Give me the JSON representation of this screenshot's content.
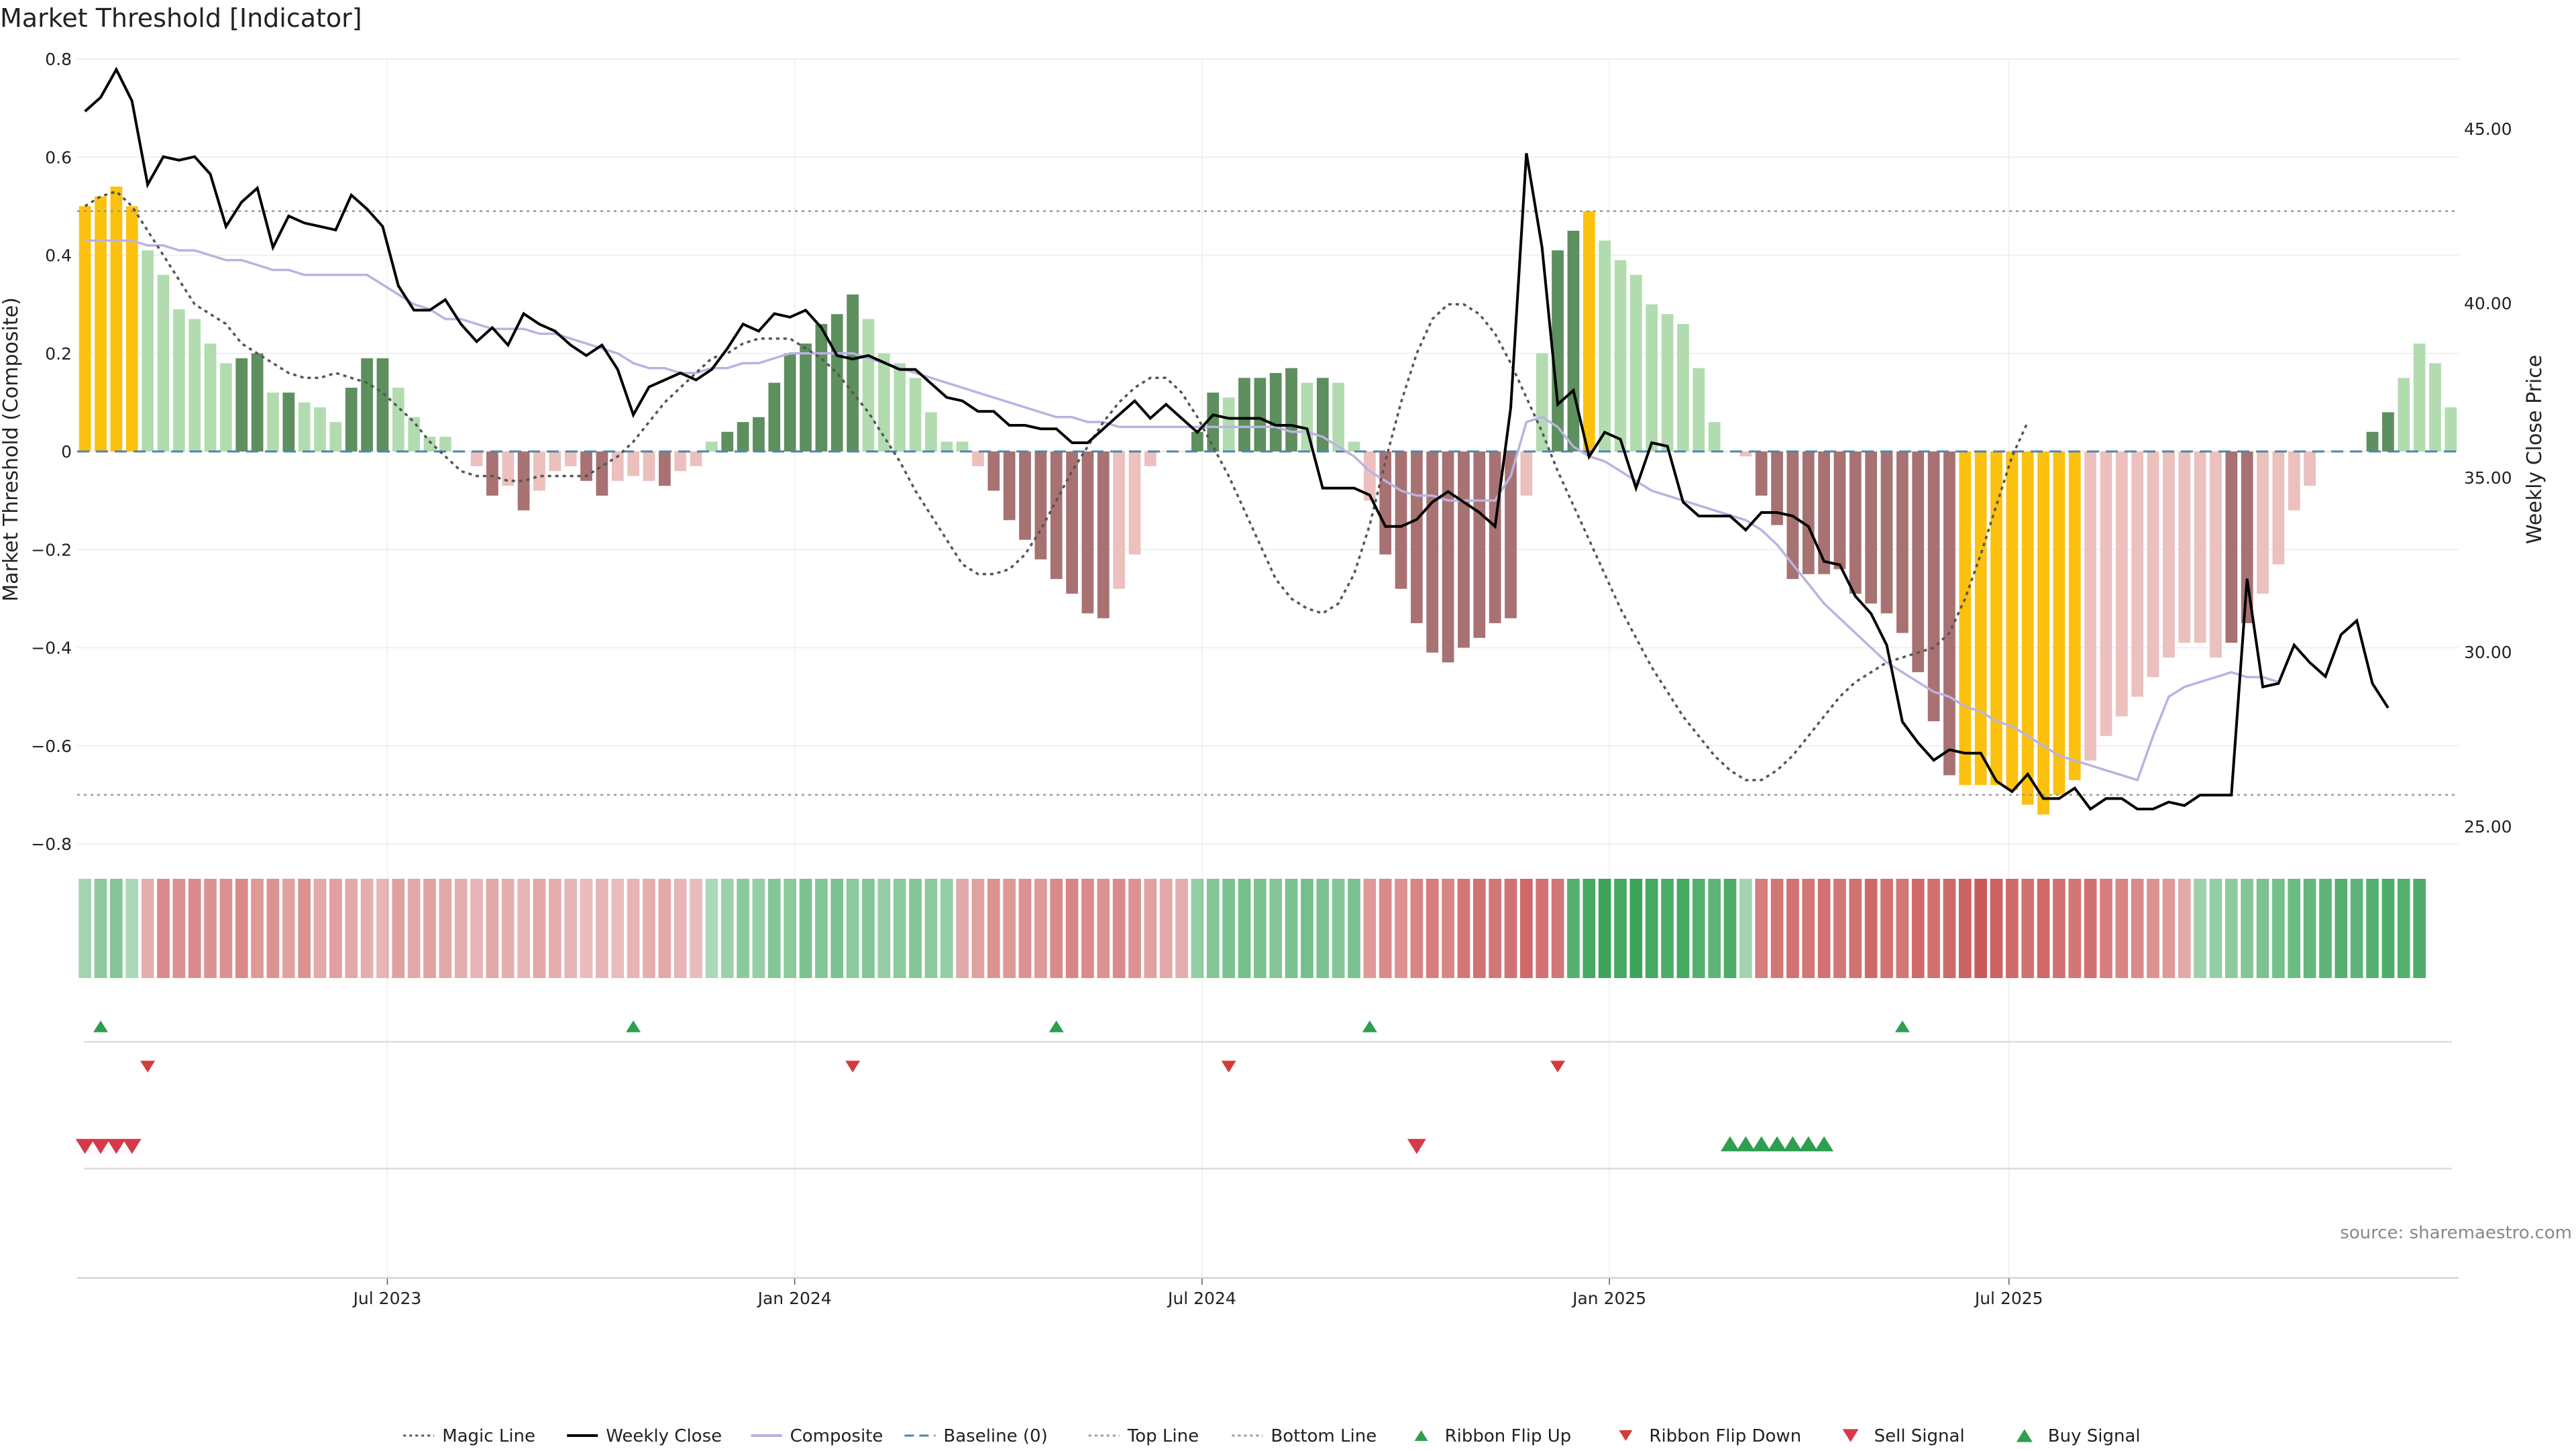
{
  "chart_data": {
    "type": "bar",
    "title": "Market Threshold [Indicator]",
    "ylabel": "Market Threshold (Composite)",
    "ylabel_right": "Weekly Close Price",
    "source": "source: sharemaestro.com",
    "ylim": [
      -0.8,
      0.8
    ],
    "ylim_right": [
      24.5,
      47
    ],
    "y_ticks": [
      "0.8",
      "0.6",
      "0.4",
      "0.2",
      "0",
      "−0.2",
      "−0.4",
      "−0.6",
      "−0.8"
    ],
    "y_tick_values": [
      0.8,
      0.6,
      0.4,
      0.2,
      0,
      -0.2,
      -0.4,
      -0.6,
      -0.8
    ],
    "y_right_ticks": [
      "45.00",
      "40.00",
      "35.00",
      "30.00",
      "25.00"
    ],
    "y_right_tick_values": [
      45,
      40,
      35,
      30,
      25
    ],
    "x_ticks": [
      "Jul 2023",
      "Jan 2024",
      "Jul 2024",
      "Jan 2025",
      "Jul 2025"
    ],
    "x_tick_weeks": [
      19.3,
      45.3,
      71.3,
      97.3,
      122.8
    ],
    "top_line": 0.49,
    "bottom_line": -0.7,
    "grid": true,
    "legend_position": "bottom-center",
    "legend": [
      {
        "label": "Magic Line",
        "kind": "dotted",
        "color": "#555555"
      },
      {
        "label": "Weekly Close",
        "kind": "solid",
        "color": "#000000"
      },
      {
        "label": "Composite",
        "kind": "solid",
        "color": "#b9b3e0"
      },
      {
        "label": "Baseline (0)",
        "kind": "dashed",
        "color": "#4a86b0"
      },
      {
        "label": "Top Line",
        "kind": "dotted",
        "color": "#999999"
      },
      {
        "label": "Bottom Line",
        "kind": "dotted",
        "color": "#999999"
      },
      {
        "label": "Ribbon Flip Up",
        "kind": "tri-up",
        "color": "#2e9e4f"
      },
      {
        "label": "Ribbon Flip Down",
        "kind": "tri-down",
        "color": "#d63a3a"
      },
      {
        "label": "Sell Signal",
        "kind": "tri-down-lg",
        "color": "#d63a4a"
      },
      {
        "label": "Buy Signal",
        "kind": "tri-up-lg",
        "color": "#2e9e4f"
      }
    ],
    "colors": {
      "extreme": "#fcc10f",
      "pos_strong": "#5e8f5e",
      "pos_light": "#b2dcb0",
      "neg_strong": "#a87272",
      "neg_light": "#ecc0bd",
      "close": "#000000",
      "composite": "#b9b3e0",
      "magic": "#555555",
      "baseline": "#4a86b0"
    },
    "histogram": [
      0.5,
      0.52,
      0.54,
      0.5,
      0.41,
      0.36,
      0.29,
      0.27,
      0.22,
      0.18,
      0.19,
      0.2,
      0.12,
      0.12,
      0.1,
      0.09,
      0.06,
      0.13,
      0.19,
      0.19,
      0.13,
      0.07,
      0.03,
      0.03,
      0,
      -0.03,
      -0.09,
      -0.07,
      -0.12,
      -0.08,
      -0.04,
      -0.03,
      -0.06,
      -0.09,
      -0.06,
      -0.05,
      -0.06,
      -0.07,
      -0.04,
      -0.03,
      0.02,
      0.04,
      0.06,
      0.07,
      0.14,
      0.2,
      0.22,
      0.26,
      0.28,
      0.32,
      0.27,
      0.2,
      0.18,
      0.15,
      0.08,
      0.02,
      0.02,
      -0.03,
      -0.08,
      -0.14,
      -0.18,
      -0.22,
      -0.26,
      -0.29,
      -0.33,
      -0.34,
      -0.28,
      -0.21,
      -0.03,
      0,
      0,
      0.04,
      0.12,
      0.11,
      0.15,
      0.15,
      0.16,
      0.17,
      0.14,
      0.15,
      0.14,
      0.02,
      -0.1,
      -0.21,
      -0.28,
      -0.35,
      -0.41,
      -0.43,
      -0.4,
      -0.38,
      -0.35,
      -0.34,
      -0.09,
      0.2,
      0.41,
      0.45,
      0.49,
      0.43,
      0.39,
      0.36,
      0.3,
      0.28,
      0.26,
      0.17,
      0.06,
      0,
      -0.01,
      -0.09,
      -0.15,
      -0.26,
      -0.25,
      -0.25,
      -0.24,
      -0.29,
      -0.31,
      -0.33,
      -0.37,
      -0.45,
      -0.55,
      -0.66,
      -0.68,
      -0.68,
      -0.68,
      -0.69,
      -0.72,
      -0.74,
      -0.7,
      -0.67,
      -0.63,
      -0.58,
      -0.54,
      -0.5,
      -0.46,
      -0.42,
      -0.39,
      -0.39,
      -0.42,
      -0.39,
      -0.35,
      -0.29,
      -0.23,
      -0.12,
      -0.07,
      0,
      0,
      0,
      0.04,
      0.08,
      0.15,
      0.22,
      0.18,
      0.09
    ],
    "bar_shade": [
      "E",
      "E",
      "E",
      "E",
      "L",
      "L",
      "L",
      "L",
      "L",
      "L",
      "S",
      "S",
      "L",
      "S",
      "L",
      "L",
      "L",
      "S",
      "S",
      "S",
      "L",
      "L",
      "L",
      "L",
      "L",
      "L",
      "S",
      "L",
      "S",
      "L",
      "L",
      "L",
      "S",
      "S",
      "L",
      "L",
      "L",
      "S",
      "L",
      "L",
      "L",
      "S",
      "S",
      "S",
      "S",
      "S",
      "S",
      "S",
      "S",
      "S",
      "L",
      "L",
      "L",
      "L",
      "L",
      "L",
      "L",
      "L",
      "S",
      "S",
      "S",
      "S",
      "S",
      "S",
      "S",
      "S",
      "L",
      "L",
      "L",
      "L",
      "L",
      "S",
      "S",
      "L",
      "S",
      "S",
      "S",
      "S",
      "L",
      "S",
      "L",
      "L",
      "L",
      "S",
      "S",
      "S",
      "S",
      "S",
      "S",
      "S",
      "S",
      "S",
      "L",
      "L",
      "S",
      "S",
      "E",
      "L",
      "L",
      "L",
      "L",
      "L",
      "L",
      "L",
      "L",
      "L",
      "L",
      "S",
      "S",
      "S",
      "S",
      "S",
      "S",
      "S",
      "S",
      "S",
      "S",
      "S",
      "S",
      "S",
      "E",
      "E",
      "E",
      "E",
      "E",
      "E",
      "E",
      "E",
      "L",
      "L",
      "L",
      "L",
      "L",
      "L",
      "L",
      "L",
      "L",
      "S",
      "S",
      "L",
      "L",
      "L",
      "L",
      "L",
      "L",
      "S",
      "S",
      "S",
      "L",
      "L"
    ],
    "weekly_close": [
      45.5,
      45.9,
      46.7,
      45.8,
      43.4,
      44.2,
      44.1,
      44.2,
      43.7,
      42.2,
      42.9,
      43.3,
      41.6,
      42.5,
      42.3,
      42.2,
      42.1,
      43.1,
      42.7,
      42.2,
      40.5,
      39.8,
      39.8,
      40.1,
      39.4,
      38.9,
      39.3,
      38.8,
      39.7,
      39.4,
      39.2,
      38.8,
      38.5,
      38.8,
      38.1,
      36.8,
      37.6,
      37.8,
      38,
      37.8,
      38.1,
      38.7,
      39.4,
      39.2,
      39.7,
      39.6,
      39.8,
      39.3,
      38.5,
      38.4,
      38.5,
      38.3,
      38.1,
      38.1,
      37.7,
      37.3,
      37.2,
      36.9,
      36.9,
      36.5,
      36.5,
      36.4,
      36.4,
      36.0,
      36.0,
      36.4,
      36.8,
      37.2,
      36.7,
      37.1,
      36.7,
      36.3,
      36.8,
      36.7,
      36.7,
      36.7,
      36.5,
      36.5,
      36.4,
      34.7,
      34.7,
      34.7,
      34.5,
      33.6,
      33.6,
      33.8,
      34.3,
      34.6,
      34.3,
      34.0,
      33.6,
      37.0,
      44.3,
      41.6,
      37.1,
      37.5,
      35.6,
      36.3,
      36.1,
      34.7,
      36.0,
      35.9,
      34.3,
      33.9,
      33.9,
      33.9,
      33.5,
      34.0,
      34.0,
      33.9,
      33.6,
      32.6,
      32.5,
      31.6,
      31.1,
      30.2,
      28.0,
      27.4,
      26.9,
      27.2,
      27.1,
      27.1,
      26.3,
      26.0,
      26.5,
      25.8,
      25.8,
      26.1,
      25.5,
      25.8,
      25.8,
      25.5,
      25.5,
      25.7,
      25.6,
      25.9,
      25.9,
      25.9,
      32.1,
      29.0,
      29.1,
      30.2,
      29.7,
      29.3,
      30.5,
      30.9,
      29.1,
      28.4
    ],
    "composite": [
      0.43,
      0.43,
      0.43,
      0.43,
      0.42,
      0.42,
      0.41,
      0.41,
      0.4,
      0.39,
      0.39,
      0.38,
      0.37,
      0.37,
      0.36,
      0.36,
      0.36,
      0.36,
      0.36,
      0.34,
      0.32,
      0.3,
      0.29,
      0.27,
      0.27,
      0.26,
      0.25,
      0.25,
      0.25,
      0.24,
      0.24,
      0.23,
      0.22,
      0.21,
      0.2,
      0.18,
      0.17,
      0.17,
      0.16,
      0.16,
      0.17,
      0.17,
      0.18,
      0.18,
      0.19,
      0.2,
      0.2,
      0.2,
      0.2,
      0.2,
      0.19,
      0.18,
      0.17,
      0.16,
      0.15,
      0.14,
      0.13,
      0.12,
      0.11,
      0.1,
      0.09,
      0.08,
      0.07,
      0.07,
      0.06,
      0.06,
      0.05,
      0.05,
      0.05,
      0.05,
      0.05,
      0.05,
      0.05,
      0.05,
      0.05,
      0.05,
      0.05,
      0.04,
      0.04,
      0.03,
      0.01,
      -0.01,
      -0.04,
      -0.06,
      -0.08,
      -0.09,
      -0.09,
      -0.1,
      -0.1,
      -0.1,
      -0.1,
      -0.05,
      0.06,
      0.07,
      0.05,
      0.01,
      -0.01,
      -0.02,
      -0.04,
      -0.06,
      -0.08,
      -0.09,
      -0.1,
      -0.11,
      -0.12,
      -0.13,
      -0.14,
      -0.16,
      -0.19,
      -0.23,
      -0.27,
      -0.31,
      -0.34,
      -0.37,
      -0.4,
      -0.43,
      -0.45,
      -0.47,
      -0.49,
      -0.5,
      -0.52,
      -0.53,
      -0.55,
      -0.56,
      -0.58,
      -0.6,
      -0.62,
      -0.63,
      -0.64,
      -0.65,
      -0.66,
      -0.67,
      -0.58,
      -0.5,
      -0.48,
      -0.47,
      -0.46,
      -0.45,
      -0.46,
      -0.46,
      -0.47
    ],
    "magic_line": [
      0.5,
      0.52,
      0.53,
      0.5,
      0.45,
      0.4,
      0.35,
      0.3,
      0.28,
      0.26,
      0.22,
      0.2,
      0.18,
      0.16,
      0.15,
      0.15,
      0.16,
      0.15,
      0.14,
      0.12,
      0.09,
      0.06,
      0.02,
      -0.01,
      -0.04,
      -0.05,
      -0.05,
      -0.06,
      -0.06,
      -0.05,
      -0.05,
      -0.05,
      -0.05,
      -0.03,
      -0.01,
      0.02,
      0.06,
      0.1,
      0.13,
      0.16,
      0.19,
      0.2,
      0.22,
      0.23,
      0.23,
      0.23,
      0.21,
      0.19,
      0.16,
      0.12,
      0.08,
      0.03,
      -0.02,
      -0.08,
      -0.13,
      -0.18,
      -0.23,
      -0.25,
      -0.25,
      -0.24,
      -0.21,
      -0.16,
      -0.1,
      -0.04,
      0.01,
      0.06,
      0.1,
      0.13,
      0.15,
      0.15,
      0.12,
      0.07,
      0.01,
      -0.05,
      -0.12,
      -0.19,
      -0.26,
      -0.3,
      -0.32,
      -0.33,
      -0.31,
      -0.25,
      -0.15,
      -0.02,
      0.1,
      0.2,
      0.27,
      0.3,
      0.3,
      0.28,
      0.24,
      0.18,
      0.11,
      0.04,
      -0.04,
      -0.11,
      -0.18,
      -0.25,
      -0.32,
      -0.38,
      -0.44,
      -0.49,
      -0.54,
      -0.58,
      -0.62,
      -0.65,
      -0.67,
      -0.67,
      -0.65,
      -0.62,
      -0.58,
      -0.54,
      -0.5,
      -0.47,
      -0.45,
      -0.43,
      -0.42,
      -0.41,
      -0.4,
      -0.37,
      -0.3,
      -0.21,
      -0.11,
      -0.01,
      0.06
    ],
    "ribbon": [
      0.25,
      0.4,
      0.45,
      0.2,
      -0.25,
      -0.5,
      -0.45,
      -0.5,
      -0.45,
      -0.45,
      -0.5,
      -0.4,
      -0.45,
      -0.35,
      -0.45,
      -0.3,
      -0.35,
      -0.3,
      -0.25,
      -0.2,
      -0.35,
      -0.3,
      -0.35,
      -0.3,
      -0.25,
      -0.2,
      -0.3,
      -0.25,
      -0.2,
      -0.3,
      -0.25,
      -0.2,
      -0.15,
      -0.2,
      -0.15,
      -0.2,
      -0.25,
      -0.3,
      -0.2,
      -0.15,
      0.2,
      0.3,
      0.4,
      0.35,
      0.45,
      0.4,
      0.5,
      0.45,
      0.5,
      0.4,
      0.45,
      0.35,
      0.4,
      0.45,
      0.4,
      0.35,
      -0.3,
      -0.35,
      -0.45,
      -0.4,
      -0.45,
      -0.4,
      -0.5,
      -0.55,
      -0.5,
      -0.45,
      -0.5,
      -0.45,
      -0.35,
      -0.3,
      -0.25,
      0.35,
      0.45,
      0.5,
      0.55,
      0.5,
      0.45,
      0.5,
      0.55,
      0.5,
      0.45,
      0.5,
      -0.4,
      -0.5,
      -0.45,
      -0.55,
      -0.6,
      -0.55,
      -0.65,
      -0.7,
      -0.65,
      -0.7,
      -0.75,
      -0.7,
      -0.65,
      0.75,
      0.85,
      0.9,
      0.85,
      0.9,
      0.85,
      0.8,
      0.85,
      0.75,
      0.7,
      0.8,
      0.25,
      -0.6,
      -0.65,
      -0.7,
      -0.65,
      -0.7,
      -0.65,
      -0.7,
      -0.75,
      -0.7,
      -0.65,
      -0.75,
      -0.7,
      -0.75,
      -0.8,
      -0.85,
      -0.8,
      -0.75,
      -0.7,
      -0.75,
      -0.7,
      -0.65,
      -0.7,
      -0.6,
      -0.55,
      -0.5,
      -0.45,
      -0.4,
      -0.3,
      0.3,
      0.35,
      0.4,
      0.45,
      0.5,
      0.55,
      0.6,
      0.65,
      0.7,
      0.75,
      0.7,
      0.75,
      0.8,
      0.75,
      0.8
    ],
    "ribbon_flip_up_weeks": [
      1,
      35,
      62,
      82,
      116
    ],
    "ribbon_flip_down_weeks": [
      4,
      49,
      73,
      94
    ],
    "sell_signal_weeks": [
      0,
      1,
      2,
      3,
      85
    ],
    "buy_signal_weeks": [
      105,
      106,
      107,
      108,
      109,
      110,
      111
    ]
  }
}
